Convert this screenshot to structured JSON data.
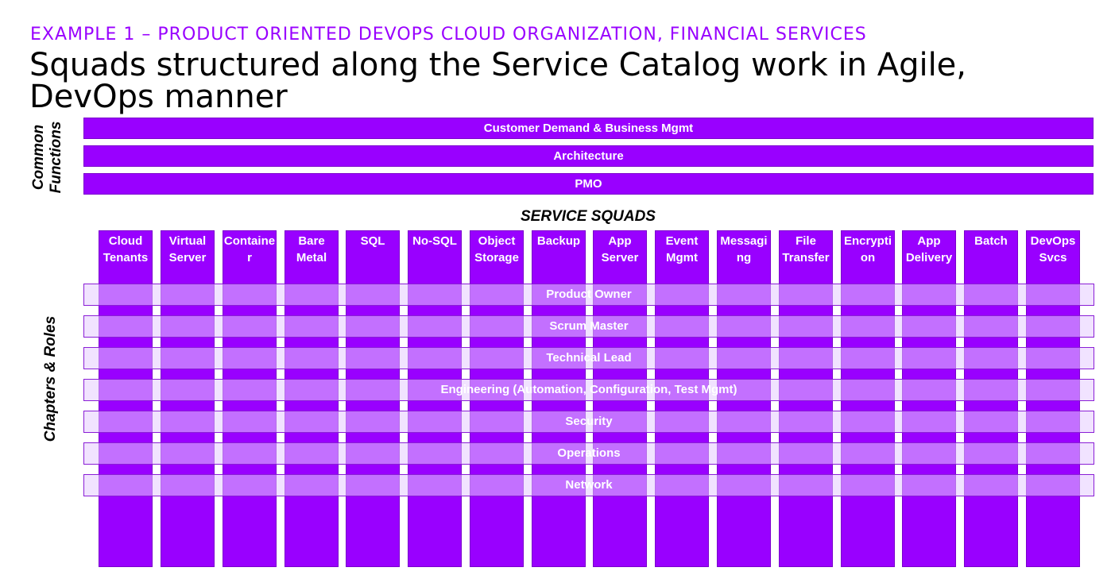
{
  "header": {
    "eyebrow": "EXAMPLE 1 – PRODUCT ORIENTED DEVOPS CLOUD ORGANIZATION, FINANCIAL SERVICES",
    "title": "Squads structured along the Service Catalog work in Agile, DevOps manner"
  },
  "common_functions": {
    "label_line1": "Common",
    "label_line2": "Functions",
    "items": [
      "Customer Demand & Business Mgmt",
      "Architecture",
      "PMO"
    ]
  },
  "service_squads": {
    "title": "SERVICE SQUADS",
    "items": [
      "Cloud Tenants",
      "Virtual Server",
      "Containe r",
      "Bare Metal",
      "SQL",
      "No-SQL",
      "Object Storage",
      "Backup",
      "App Server",
      "Event Mgmt",
      "Messagi ng",
      "File Transfer",
      "Encrypti on",
      "App Delivery",
      "Batch",
      "DevOps Svcs"
    ]
  },
  "chapters": {
    "label": "Chapters & Roles",
    "items": [
      "Product Owner",
      "Scrum Master",
      "Technical Lead",
      "Engineering (Automation, Configuration, Test Mgmt)",
      "Security",
      "Operations",
      "Network"
    ]
  },
  "colors": {
    "purple": "#9900ff",
    "role_overlay": "#e5ccff",
    "title_text": "#000000"
  }
}
